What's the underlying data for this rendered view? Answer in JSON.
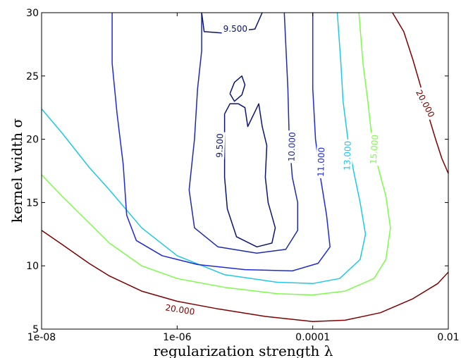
{
  "chart_data": {
    "type": "contour",
    "xlabel": "regularization strength λ",
    "ylabel": "kernel width σ",
    "x_scale": "log",
    "xlim": [
      1e-08,
      0.01
    ],
    "ylim": [
      5,
      30
    ],
    "x_ticks": [
      {
        "value": 1e-08,
        "label": "1e-08"
      },
      {
        "value": 1e-06,
        "label": "1e-06"
      },
      {
        "value": 0.0001,
        "label": "0.0001"
      },
      {
        "value": 0.01,
        "label": "0.01"
      }
    ],
    "y_ticks": [
      5,
      10,
      15,
      20,
      25,
      30
    ],
    "grid": false,
    "levels": [
      {
        "value": 20,
        "color": "#7f0000",
        "lines": [
          [
            [
              1e-08,
              12.8
            ],
            [
              2e-08,
              11.7
            ],
            [
              5e-08,
              10.2
            ],
            [
              1e-07,
              9.2
            ],
            [
              3e-07,
              8.0
            ],
            [
              1e-06,
              7.2
            ],
            [
              4e-06,
              6.6
            ],
            [
              2e-05,
              6.0
            ],
            [
              0.0001,
              5.6
            ],
            [
              0.0003,
              5.7
            ],
            [
              0.001,
              6.3
            ],
            [
              0.003,
              7.4
            ],
            [
              0.007,
              8.6
            ],
            [
              0.01,
              9.5
            ]
          ],
          [
            [
              0.0015,
              30
            ],
            [
              0.0022,
              28.5
            ],
            [
              0.003,
              26.3
            ],
            [
              0.004,
              24.0
            ],
            [
              0.005,
              22.0
            ],
            [
              0.0065,
              20.0
            ],
            [
              0.008,
              18.5
            ],
            [
              0.01,
              17.3
            ]
          ]
        ],
        "labels": [
          {
            "text": "20.000",
            "x": 1.1e-06,
            "y": 6.5,
            "angle": 9
          },
          {
            "text": "20.000",
            "x": 0.0045,
            "y": 22.8,
            "angle": 62
          }
        ]
      },
      {
        "value": 15,
        "color": "#7cfc4a",
        "lines": [
          [
            [
              1e-08,
              17.2
            ],
            [
              2e-08,
              15.5
            ],
            [
              5e-08,
              13.4
            ],
            [
              1e-07,
              11.8
            ],
            [
              3e-07,
              10.0
            ],
            [
              1e-06,
              9.0
            ],
            [
              5e-06,
              8.3
            ],
            [
              3e-05,
              7.8
            ],
            [
              0.0001,
              7.7
            ],
            [
              0.0003,
              8.0
            ],
            [
              0.0008,
              9.0
            ],
            [
              0.0012,
              10.5
            ],
            [
              0.0014,
              13.0
            ],
            [
              0.0012,
              15.5
            ],
            [
              0.0009,
              18.0
            ],
            [
              0.00075,
              20.0
            ],
            [
              0.00065,
              23.0
            ],
            [
              0.00055,
              26.0
            ],
            [
              0.00048,
              30
            ]
          ]
        ],
        "labels": [
          {
            "text": "15.000",
            "x": 0.00082,
            "y": 19.2,
            "angle": -86
          }
        ]
      },
      {
        "value": 13,
        "color": "#1ec8e8",
        "lines": [
          [
            [
              1e-08,
              22.4
            ],
            [
              2e-08,
              20.5
            ],
            [
              5e-08,
              17.8
            ],
            [
              1e-07,
              16.0
            ],
            [
              3e-07,
              13.0
            ],
            [
              1e-06,
              10.8
            ],
            [
              5e-06,
              9.3
            ],
            [
              3e-05,
              8.7
            ],
            [
              0.0001,
              8.6
            ],
            [
              0.00025,
              9.0
            ],
            [
              0.0005,
              10.5
            ],
            [
              0.0006,
              12.5
            ],
            [
              0.0005,
              15.0
            ],
            [
              0.0004,
              17.5
            ],
            [
              0.00033,
              20.0
            ],
            [
              0.00028,
              23.0
            ],
            [
              0.00026,
              26.0
            ],
            [
              0.00023,
              30
            ]
          ]
        ],
        "labels": [
          {
            "text": "13.000",
            "x": 0.00033,
            "y": 18.7,
            "angle": -88
          }
        ]
      },
      {
        "value": 11,
        "color": "#1e2ad8",
        "lines": [
          [
            [
              1.1e-07,
              30
            ],
            [
              1.1e-07,
              26.0
            ],
            [
              1.3e-07,
              22.0
            ],
            [
              1.6e-07,
              18.0
            ],
            [
              1.8e-07,
              14.0
            ],
            [
              2.5e-07,
              12.0
            ],
            [
              6e-07,
              10.8
            ],
            [
              2e-06,
              10.1
            ],
            [
              1e-05,
              9.7
            ],
            [
              5e-05,
              9.6
            ],
            [
              0.00012,
              10.2
            ],
            [
              0.00018,
              11.5
            ],
            [
              0.00016,
              14.0
            ],
            [
              0.00013,
              17.0
            ],
            [
              0.00011,
              20.0
            ],
            [
              0.0001,
              24.0
            ],
            [
              0.0001,
              30
            ]
          ]
        ],
        "labels": [
          {
            "text": "11.000",
            "x": 0.000135,
            "y": 18.2,
            "angle": -88
          }
        ]
      },
      {
        "value": 10,
        "color": "#1e2aa8",
        "lines": [
          [
            [
              2.3e-06,
              30
            ],
            [
              2.3e-06,
              27.0
            ],
            [
              2e-06,
              24.0
            ],
            [
              1.8e-06,
              20.0
            ],
            [
              1.5e-06,
              16.0
            ],
            [
              1.8e-06,
              13.0
            ],
            [
              4e-06,
              11.5
            ],
            [
              1.5e-05,
              11.0
            ],
            [
              4e-05,
              11.3
            ],
            [
              6e-05,
              12.8
            ],
            [
              6e-05,
              15.0
            ],
            [
              5e-05,
              17.0
            ],
            [
              4.5e-05,
              20.0
            ],
            [
              4.3e-05,
              24.0
            ],
            [
              3.8e-05,
              30
            ]
          ]
        ],
        "labels": [
          {
            "text": "10.000",
            "x": 5e-05,
            "y": 19.4,
            "angle": -88
          }
        ]
      },
      {
        "value": 9.5,
        "color": "#0a1470",
        "lines": [
          [
            [
              2.3e-06,
              30
            ],
            [
              2.5e-06,
              28.5
            ],
            [
              4.5e-06,
              28.4
            ],
            [
              1.4e-05,
              28.7
            ],
            [
              1.8e-05,
              30
            ]
          ],
          [
            [
              5e-06,
              22.0
            ],
            [
              5e-06,
              17.0
            ],
            [
              5.5e-06,
              14.5
            ],
            [
              7.5e-06,
              12.3
            ],
            [
              1.5e-05,
              11.5
            ],
            [
              2.5e-05,
              11.8
            ],
            [
              2.8e-05,
              13.0
            ],
            [
              2.2e-05,
              15.0
            ],
            [
              2e-05,
              17.0
            ],
            [
              2.1e-05,
              19.5
            ],
            [
              1.8e-05,
              21.0
            ],
            [
              1.6e-05,
              22.8
            ],
            [
              1.1e-05,
              21.0
            ],
            [
              1e-05,
              22.5
            ],
            [
              8e-06,
              22.8
            ],
            [
              6e-06,
              22.8
            ],
            [
              5e-06,
              22.0
            ]
          ],
          [
            [
              6e-06,
              23.6
            ],
            [
              7e-06,
              24.5
            ],
            [
              9e-06,
              25.0
            ],
            [
              1e-05,
              24.3
            ],
            [
              9e-06,
              23.5
            ],
            [
              7e-06,
              23.0
            ],
            [
              6e-06,
              23.6
            ]
          ]
        ],
        "labels": [
          {
            "text": "9.500",
            "x": 7.2e-06,
            "y": 28.7,
            "angle": 0
          },
          {
            "text": "9.500",
            "x": 4.3e-06,
            "y": 19.5,
            "angle": -88
          }
        ]
      }
    ]
  }
}
